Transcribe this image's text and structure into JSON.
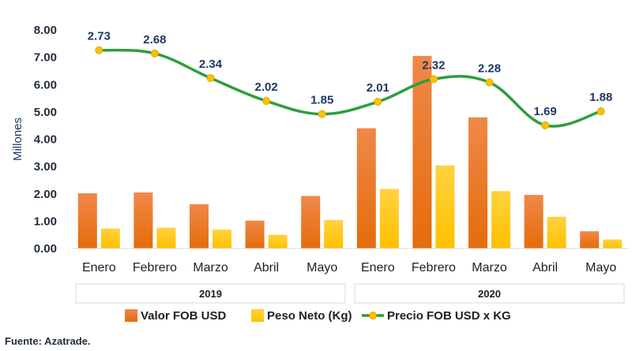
{
  "chart_data": {
    "type": "bar",
    "ylabel": "Millones",
    "ylim": [
      0,
      8
    ],
    "yticks": [
      "0.00",
      "1.00",
      "2.00",
      "3.00",
      "4.00",
      "5.00",
      "6.00",
      "7.00",
      "8.00"
    ],
    "categories": [
      "Enero",
      "Febrero",
      "Marzo",
      "Abril",
      "Mayo",
      "Enero",
      "Febrero",
      "Marzo",
      "Abril",
      "Mayo"
    ],
    "groups": [
      {
        "label": "2019",
        "start": 0,
        "end": 4
      },
      {
        "label": "2020",
        "start": 5,
        "end": 9
      }
    ],
    "series": [
      {
        "name": "Valor FOB USD",
        "kind": "bar",
        "color": "#ed7d31",
        "values": [
          2.02,
          2.05,
          1.62,
          1.02,
          1.92,
          4.4,
          7.05,
          4.8,
          1.96,
          0.63
        ]
      },
      {
        "name": "Peso Neto (Kg)",
        "kind": "bar",
        "color": "#ffc000",
        "values": [
          0.73,
          0.76,
          0.69,
          0.5,
          1.04,
          2.18,
          3.04,
          2.1,
          1.16,
          0.33
        ]
      },
      {
        "name": "Precio FOB USD x KG",
        "kind": "line",
        "color": "#2e9e3a",
        "marker_color": "#ffc000",
        "values": [
          2.73,
          2.68,
          2.34,
          2.02,
          1.85,
          2.01,
          2.32,
          2.28,
          1.69,
          1.88
        ],
        "plot_values": [
          7.26,
          7.14,
          6.24,
          5.4,
          4.92,
          5.37,
          6.2,
          6.08,
          4.51,
          5.02
        ],
        "labels": [
          "2.73",
          "2.68",
          "2.34",
          "2.02",
          "1.85",
          "2.01",
          "2.32",
          "2.28",
          "1.69",
          "1.88"
        ]
      }
    ],
    "legend": "bottom",
    "grid": false
  },
  "source": "Fuente: Azatrade."
}
